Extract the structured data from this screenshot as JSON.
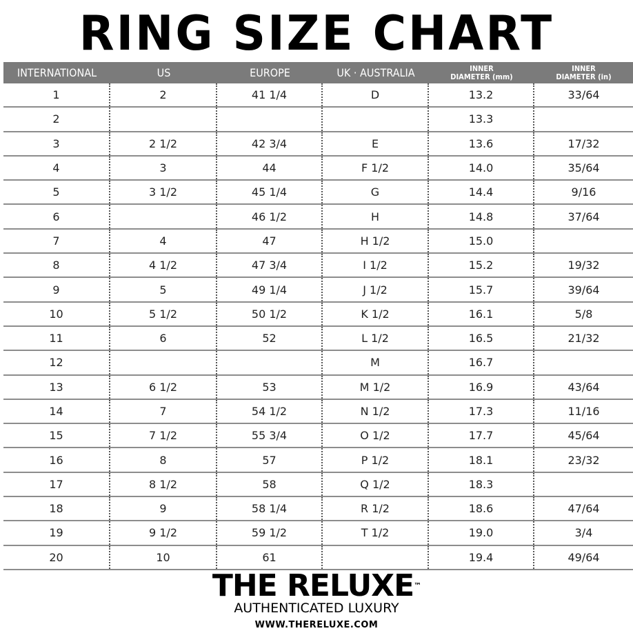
{
  "title": "RING SIZE CHART",
  "headers": [
    {
      "label": "INTERNATIONAL"
    },
    {
      "label": "US"
    },
    {
      "label": "EUROPE"
    },
    {
      "label": "UK · AUSTRALIA"
    },
    {
      "label": "INNER DIAMETER (mm)",
      "line1": "INNER",
      "line2": "DIAMETER (mm)"
    },
    {
      "label": "INNER DIAMETER (in)",
      "line1": "INNER",
      "line2": "DIAMETER (in)"
    }
  ],
  "rows": [
    [
      "1",
      "2",
      "41 1/4",
      "D",
      "13.2",
      "33/64"
    ],
    [
      "2",
      "",
      "",
      "",
      "13.3",
      ""
    ],
    [
      "3",
      "2 1/2",
      "42 3/4",
      "E",
      "13.6",
      "17/32"
    ],
    [
      "4",
      "3",
      "44",
      "F 1/2",
      "14.0",
      "35/64"
    ],
    [
      "5",
      "3 1/2",
      "45 1/4",
      "G",
      "14.4",
      "9/16"
    ],
    [
      "6",
      "",
      "46 1/2",
      "H",
      "14.8",
      "37/64"
    ],
    [
      "7",
      "4",
      "47",
      "H 1/2",
      "15.0",
      ""
    ],
    [
      "8",
      "4 1/2",
      "47 3/4",
      "I 1/2",
      "15.2",
      "19/32"
    ],
    [
      "9",
      "5",
      "49 1/4",
      "J 1/2",
      "15.7",
      "39/64"
    ],
    [
      "10",
      "5 1/2",
      "50 1/2",
      "K 1/2",
      "16.1",
      "5/8"
    ],
    [
      "11",
      "6",
      "52",
      "L 1/2",
      "16.5",
      "21/32"
    ],
    [
      "12",
      "",
      "",
      "M",
      "16.7",
      ""
    ],
    [
      "13",
      "6 1/2",
      "53",
      "M 1/2",
      "16.9",
      "43/64"
    ],
    [
      "14",
      "7",
      "54 1/2",
      "N 1/2",
      "17.3",
      "11/16"
    ],
    [
      "15",
      "7 1/2",
      "55 3/4",
      "O 1/2",
      "17.7",
      "45/64"
    ],
    [
      "16",
      "8",
      "57",
      "P 1/2",
      "18.1",
      "23/32"
    ],
    [
      "17",
      "8 1/2",
      "58",
      "Q 1/2",
      "18.3",
      ""
    ],
    [
      "18",
      "9",
      "58 1/4",
      "R 1/2",
      "18.6",
      "47/64"
    ],
    [
      "19",
      "9 1/2",
      "59 1/2",
      "T 1/2",
      "19.0",
      "3/4"
    ],
    [
      "20",
      "10",
      "61",
      "",
      "19.4",
      "49/64"
    ]
  ],
  "brand": {
    "name": "THE RELUXE",
    "trademark": "™",
    "tagline": "AUTHENTICATED LUXURY",
    "url": "WWW.THERELUXE.COM"
  },
  "colors": {
    "header_bg": "#7b7b7b",
    "header_text": "#ffffff",
    "row_border": "#8c8c8c"
  }
}
